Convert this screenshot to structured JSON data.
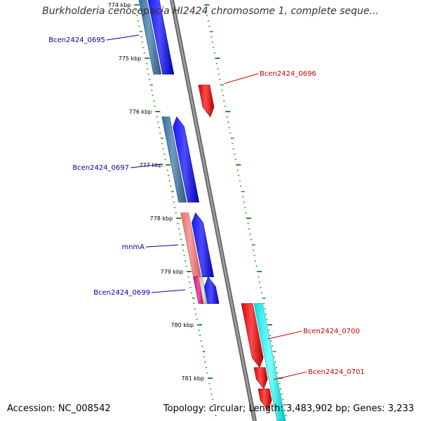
{
  "header": {
    "title": "Burkholderia cenocepacia HI2424 chromosome 1, complete seque..."
  },
  "footer": {
    "accession": "Accession: NC_008542",
    "summary": "Topology: circular; Length: 3,483,902 bp; Genes: 3,233"
  },
  "ruler": {
    "ticks": [
      {
        "label": "774 kbp",
        "kbp": 774
      },
      {
        "label": "775 kbp",
        "kbp": 775
      },
      {
        "label": "776 kbp",
        "kbp": 776
      },
      {
        "label": "777 kbp",
        "kbp": 777
      },
      {
        "label": "778 kbp",
        "kbp": 778
      },
      {
        "label": "779 kbp",
        "kbp": 779
      },
      {
        "label": "780 kbp",
        "kbp": 780
      },
      {
        "label": "781 kbp",
        "kbp": 781
      }
    ]
  },
  "genes": [
    {
      "name": "Bcen2424_0695",
      "strand": "forward",
      "color": "#0000ff",
      "start_kbp": 773.9,
      "end_kbp": 775.3
    },
    {
      "name": "Bcen2424_0696",
      "strand": "reverse",
      "color": "#ff0000",
      "start_kbp": 775.5,
      "end_kbp": 776.1
    },
    {
      "name": "Bcen2424_0697",
      "strand": "forward",
      "color": "#0000ff",
      "start_kbp": 776.1,
      "end_kbp": 777.7
    },
    {
      "name": "mnmA",
      "strand": "forward",
      "color": "#0000ff",
      "start_kbp": 777.9,
      "end_kbp": 779.1
    },
    {
      "name": "Bcen2424_0699",
      "strand": "forward",
      "color": "#0000ff",
      "start_kbp": 779.1,
      "end_kbp": 779.6
    },
    {
      "name": "Bcen2424_0700",
      "strand": "reverse",
      "color": "#ff0000",
      "start_kbp": 779.6,
      "end_kbp": 780.8
    },
    {
      "name": "Bcen2424_0701",
      "strand": "reverse",
      "color": "#ff0000",
      "start_kbp": 780.8,
      "end_kbp": 781.2
    },
    {
      "name": "",
      "strand": "reverse",
      "color": "#ff0000",
      "start_kbp": 781.2,
      "end_kbp": 781.6
    }
  ],
  "colors": {
    "forward_label": "#0000aa",
    "reverse_label": "#cc0000",
    "backbone": "#8c8c8c",
    "tick": "#2e8b2e",
    "cog_blue": "#4682b4",
    "cog_pink": "#f08080",
    "cog_magenta": "#ff1493",
    "cog_cyan": "#00ffff",
    "cog_grey": "#c0c0c0"
  }
}
